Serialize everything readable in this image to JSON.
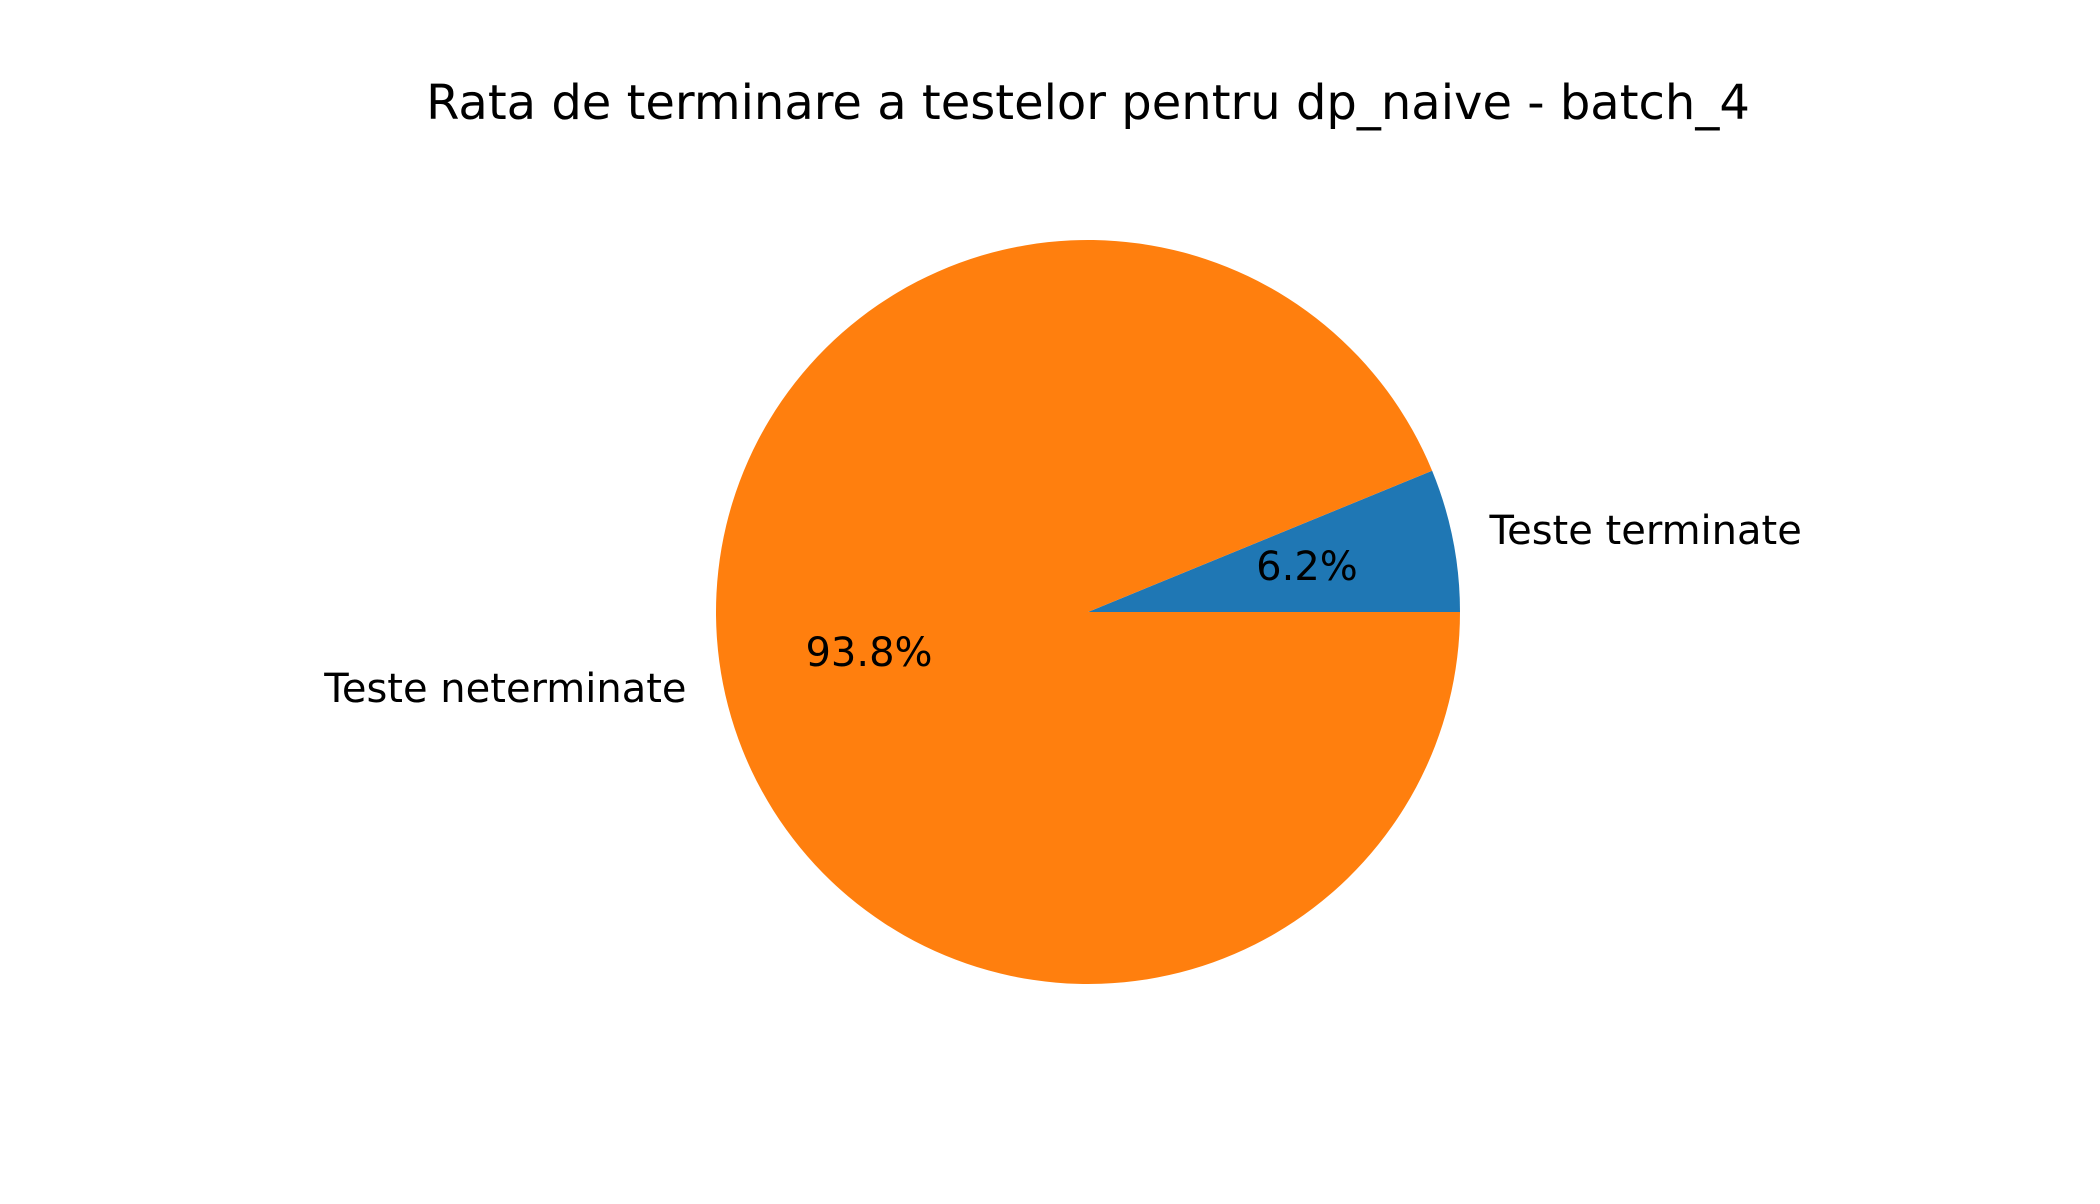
{
  "chart_data": {
    "type": "pie",
    "title": "Rata de terminare a testelor pentru dp_naive - batch_4",
    "slices": [
      {
        "label": "Teste terminate",
        "value": 6.2,
        "pct_label": "6.2%",
        "color": "#1f77b4"
      },
      {
        "label": "Teste neterminate",
        "value": 93.8,
        "pct_label": "93.8%",
        "color": "#ff7f0e"
      }
    ],
    "start_angle_deg": 0,
    "direction": "counterclockwise",
    "legend": "none"
  }
}
